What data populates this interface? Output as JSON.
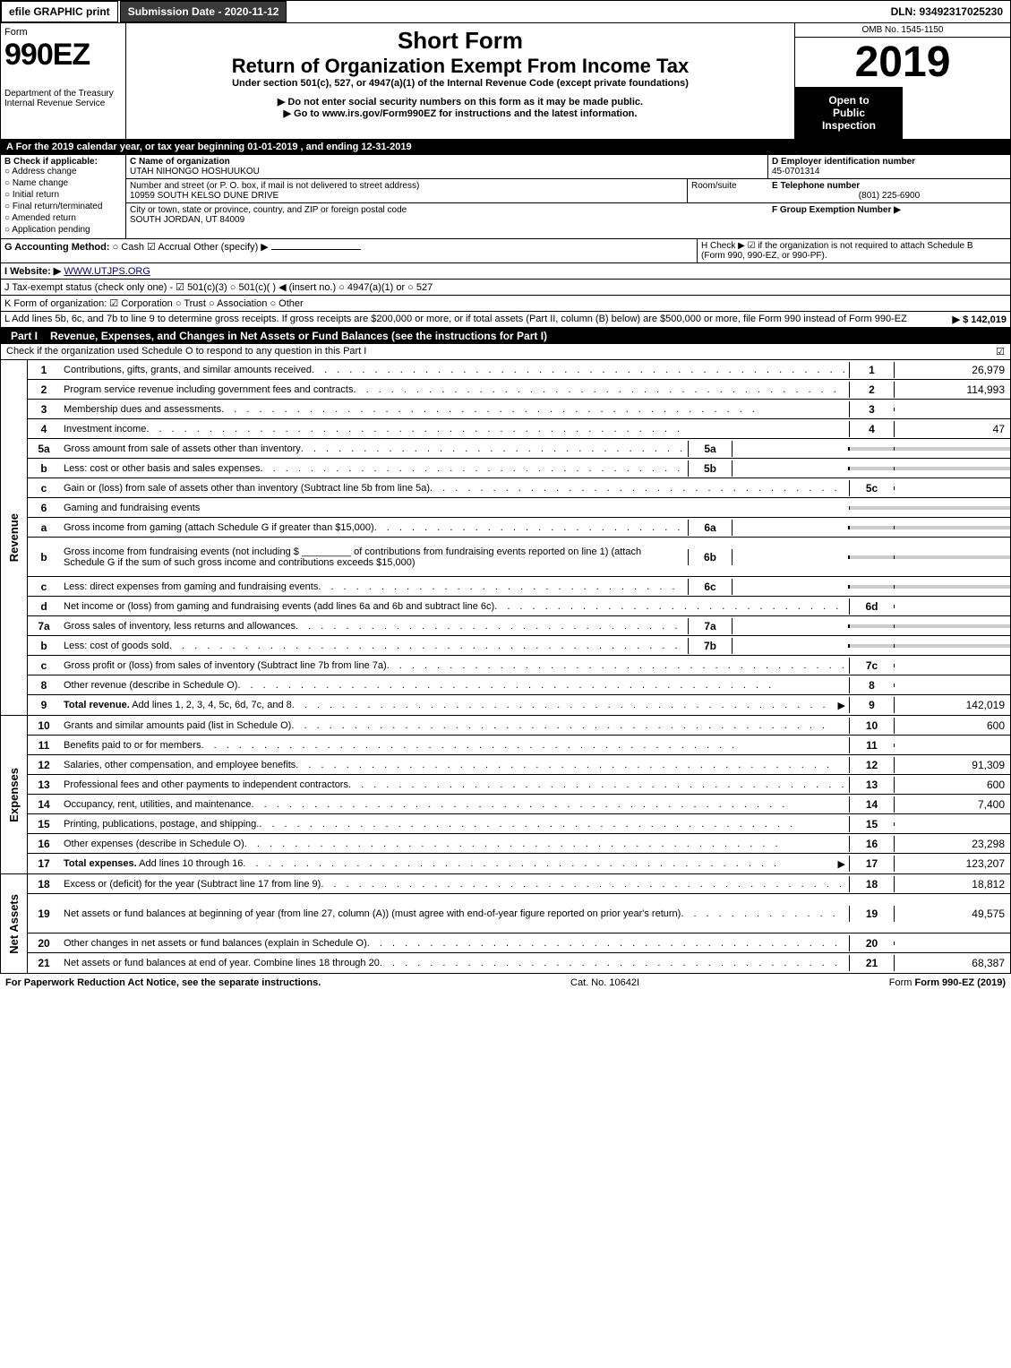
{
  "toolbar": {
    "efile": "efile GRAPHIC print",
    "submission_label": "Submission Date - 2020-11-12",
    "dln": "DLN: 93492317025230"
  },
  "header": {
    "form_word": "Form",
    "form_number": "990EZ",
    "short": "Short Form",
    "title": "Return of Organization Exempt From Income Tax",
    "sub1": "Under section 501(c), 527, or 4947(a)(1) of the Internal Revenue Code (except private foundations)",
    "sub2": "▶ Do not enter social security numbers on this form as it may be made public.",
    "sub3": "▶ Go to www.irs.gov/Form990EZ for instructions and the latest information.",
    "omb": "OMB No. 1545-1150",
    "year": "2019",
    "inspect1": "Open to",
    "inspect2": "Public",
    "inspect3": "Inspection",
    "dept1": "Department of the Treasury",
    "dept2": "Internal Revenue Service"
  },
  "line_a": "A  For the 2019 calendar year, or tax year beginning 01-01-2019 , and ending 12-31-2019",
  "box_b": {
    "label": "B  Check if applicable:",
    "items": [
      "Address change",
      "Name change",
      "Initial return",
      "Final return/terminated",
      "Amended return",
      "Application pending"
    ]
  },
  "box_c": {
    "label": "C Name of organization",
    "name": "UTAH NIHONGO HOSHUUKOU",
    "addr_label": "Number and street (or P. O. box, if mail is not delivered to street address)",
    "addr": "10959 SOUTH KELSO DUNE DRIVE",
    "room": "Room/suite",
    "city_label": "City or town, state or province, country, and ZIP or foreign postal code",
    "city": "SOUTH JORDAN, UT  84009"
  },
  "box_d": {
    "label": "D Employer identification number",
    "val": "45-0701314"
  },
  "box_e": {
    "label": "E Telephone number",
    "val": "(801) 225-6900"
  },
  "box_f": {
    "label": "F Group Exemption Number  ▶"
  },
  "line_g": {
    "label": "G Accounting Method:",
    "cash": "○ Cash",
    "accrual": "☑ Accrual",
    "other": "Other (specify) ▶"
  },
  "line_h": {
    "label": "H  Check ▶  ☑  if the organization is not required to attach Schedule B",
    "sub": "(Form 990, 990-EZ, or 990-PF)."
  },
  "line_i": {
    "label": "I Website: ▶",
    "val": "WWW.UTJPS.ORG"
  },
  "line_j": "J Tax-exempt status (check only one) -  ☑ 501(c)(3)  ○ 501(c)(  ) ◀ (insert no.)  ○ 4947(a)(1) or  ○ 527",
  "line_k": "K Form of organization:   ☑ Corporation   ○ Trust   ○ Association   ○ Other",
  "line_l": {
    "text": "L Add lines 5b, 6c, and 7b to line 9 to determine gross receipts. If gross receipts are $200,000 or more, or if total assets (Part II, column (B) below) are $500,000 or more, file Form 990 instead of Form 990-EZ",
    "arrow": "▶ $ 142,019"
  },
  "part1": {
    "label": "Part I",
    "title": "Revenue, Expenses, and Changes in Net Assets or Fund Balances (see the instructions for Part I)",
    "check": "Check if the organization used Schedule O to respond to any question in this Part I",
    "check_sym": "☑"
  },
  "vlabels": {
    "rev": "Revenue",
    "exp": "Expenses",
    "net": "Net Assets"
  },
  "revenue": [
    {
      "n": "1",
      "d": "Contributions, gifts, grants, and similar amounts received",
      "ln": "1",
      "v": "26,979"
    },
    {
      "n": "2",
      "d": "Program service revenue including government fees and contracts",
      "ln": "2",
      "v": "114,993"
    },
    {
      "n": "3",
      "d": "Membership dues and assessments",
      "ln": "3",
      "v": ""
    },
    {
      "n": "4",
      "d": "Investment income",
      "ln": "4",
      "v": "47"
    },
    {
      "n": "5a",
      "d": "Gross amount from sale of assets other than inventory",
      "sc": "5a",
      "sv": ""
    },
    {
      "n": "b",
      "d": "Less: cost or other basis and sales expenses",
      "sc": "5b",
      "sv": ""
    },
    {
      "n": "c",
      "d": "Gain or (loss) from sale of assets other than inventory (Subtract line 5b from line 5a)",
      "ln": "5c",
      "v": ""
    },
    {
      "n": "6",
      "d": "Gaming and fundraising events",
      "header": true
    },
    {
      "n": "a",
      "d": "Gross income from gaming (attach Schedule G if greater than $15,000)",
      "sc": "6a",
      "sv": ""
    },
    {
      "n": "b",
      "d": "Gross income from fundraising events (not including $ _________ of contributions from fundraising events reported on line 1) (attach Schedule G if the sum of such gross income and contributions exceeds $15,000)",
      "sc": "6b",
      "sv": "",
      "tall": true
    },
    {
      "n": "c",
      "d": "Less: direct expenses from gaming and fundraising events",
      "sc": "6c",
      "sv": ""
    },
    {
      "n": "d",
      "d": "Net income or (loss) from gaming and fundraising events (add lines 6a and 6b and subtract line 6c)",
      "ln": "6d",
      "v": ""
    },
    {
      "n": "7a",
      "d": "Gross sales of inventory, less returns and allowances",
      "sc": "7a",
      "sv": ""
    },
    {
      "n": "b",
      "d": "Less: cost of goods sold",
      "sc": "7b",
      "sv": ""
    },
    {
      "n": "c",
      "d": "Gross profit or (loss) from sales of inventory (Subtract line 7b from line 7a)",
      "ln": "7c",
      "v": ""
    },
    {
      "n": "8",
      "d": "Other revenue (describe in Schedule O)",
      "ln": "8",
      "v": ""
    },
    {
      "n": "9",
      "d": "Total revenue. Add lines 1, 2, 3, 4, 5c, 6d, 7c, and 8",
      "ln": "9",
      "v": "142,019",
      "bold": true,
      "arrow": true
    }
  ],
  "expenses": [
    {
      "n": "10",
      "d": "Grants and similar amounts paid (list in Schedule O)",
      "ln": "10",
      "v": "600"
    },
    {
      "n": "11",
      "d": "Benefits paid to or for members",
      "ln": "11",
      "v": ""
    },
    {
      "n": "12",
      "d": "Salaries, other compensation, and employee benefits",
      "ln": "12",
      "v": "91,309"
    },
    {
      "n": "13",
      "d": "Professional fees and other payments to independent contractors",
      "ln": "13",
      "v": "600"
    },
    {
      "n": "14",
      "d": "Occupancy, rent, utilities, and maintenance",
      "ln": "14",
      "v": "7,400"
    },
    {
      "n": "15",
      "d": "Printing, publications, postage, and shipping.",
      "ln": "15",
      "v": ""
    },
    {
      "n": "16",
      "d": "Other expenses (describe in Schedule O)",
      "ln": "16",
      "v": "23,298"
    },
    {
      "n": "17",
      "d": "Total expenses. Add lines 10 through 16",
      "ln": "17",
      "v": "123,207",
      "bold": true,
      "arrow": true
    }
  ],
  "netassets": [
    {
      "n": "18",
      "d": "Excess or (deficit) for the year (Subtract line 17 from line 9)",
      "ln": "18",
      "v": "18,812"
    },
    {
      "n": "19",
      "d": "Net assets or fund balances at beginning of year (from line 27, column (A)) (must agree with end-of-year figure reported on prior year's return)",
      "ln": "19",
      "v": "49,575",
      "tall": true
    },
    {
      "n": "20",
      "d": "Other changes in net assets or fund balances (explain in Schedule O)",
      "ln": "20",
      "v": ""
    },
    {
      "n": "21",
      "d": "Net assets or fund balances at end of year. Combine lines 18 through 20",
      "ln": "21",
      "v": "68,387"
    }
  ],
  "footer": {
    "left": "For Paperwork Reduction Act Notice, see the separate instructions.",
    "cat": "Cat. No. 10642I",
    "right": "Form 990-EZ (2019)"
  }
}
